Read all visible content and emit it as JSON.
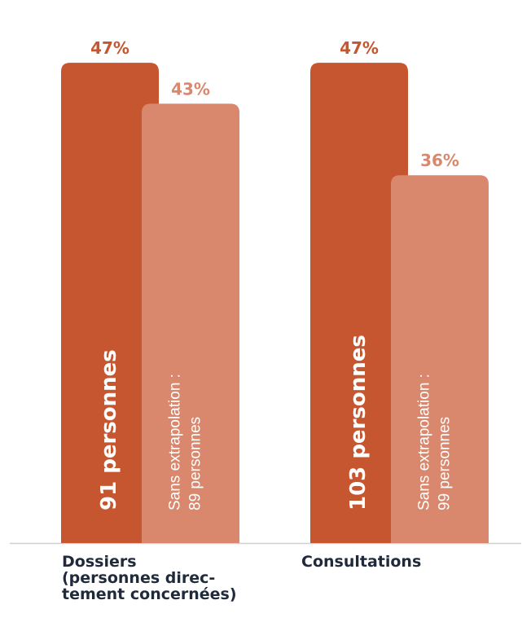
{
  "chart_data": {
    "type": "bar",
    "ylim": [
      0,
      50
    ],
    "categories": [
      {
        "lines": [
          "Dossiers",
          "(personnes direc-",
          "tement concernées)"
        ]
      },
      {
        "lines": [
          "Consultations"
        ]
      }
    ],
    "series": [
      {
        "values": [
          47,
          47
        ],
        "value_labels": [
          "47%",
          "47%"
        ],
        "bar_texts": [
          [
            "91 personnes"
          ],
          [
            "103 personnes"
          ]
        ]
      },
      {
        "values": [
          43,
          36
        ],
        "value_labels": [
          "43%",
          "36%"
        ],
        "bar_texts": [
          [
            "Sans extrapolation :",
            "89 personnes"
          ],
          [
            "Sans extrapolation :",
            "99 personnes"
          ]
        ]
      }
    ],
    "colors": [
      "#c5562f",
      "#d9886d"
    ],
    "grid": false,
    "legend": "none"
  }
}
